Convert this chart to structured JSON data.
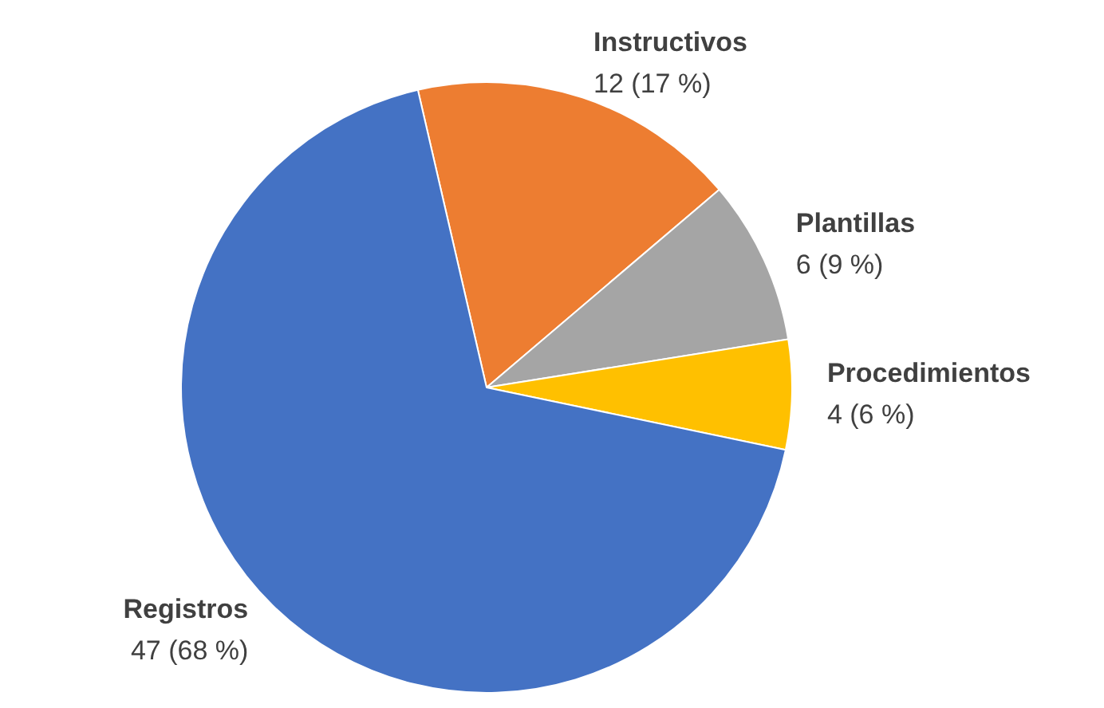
{
  "chart_data": {
    "type": "pie",
    "categories": [
      "Instructivos",
      "Plantillas",
      "Procedimientos",
      "Registros"
    ],
    "values": [
      12,
      6,
      4,
      47
    ],
    "colors": [
      "#ed7d31",
      "#a5a5a5",
      "#ffc000",
      "#4472c4"
    ],
    "value_labels": [
      "12 (17 %)",
      "6 (9 %)",
      "4 (6 %)",
      "47 (68 %)"
    ],
    "legend": false
  }
}
